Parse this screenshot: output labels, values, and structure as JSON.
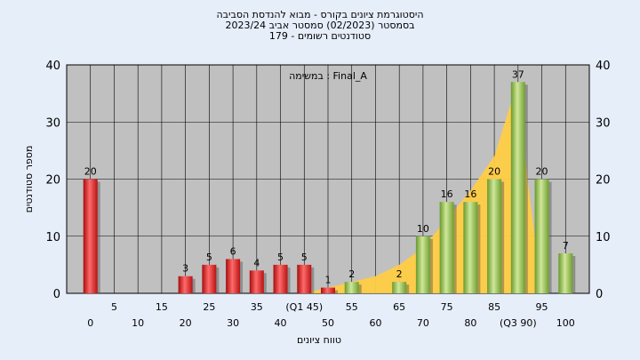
{
  "title_lines": [
    "היסטוגרמת ציונים בקורס - מבוא להנדסת הסביבה",
    "בסמסטר  (02/2023)  סמסטר אביב 2023/24",
    "סטודנטים רשומים - 179"
  ],
  "chart_data": {
    "type": "bar",
    "annotation": "במשימה : Final_A",
    "ylabel": "מספר סטודנטים",
    "xlabel": "טווח ציונים",
    "ylim": [
      0,
      40
    ],
    "yticks": [
      0,
      10,
      20,
      30,
      40
    ],
    "grid": true,
    "x_ticks": [
      {
        "label": "0",
        "row": 2
      },
      {
        "label": "5",
        "row": 1
      },
      {
        "label": "10",
        "row": 2
      },
      {
        "label": "15",
        "row": 1
      },
      {
        "label": "20",
        "row": 2
      },
      {
        "label": "25",
        "row": 1
      },
      {
        "label": "30",
        "row": 2
      },
      {
        "label": "35",
        "row": 1
      },
      {
        "label": "40",
        "row": 2
      },
      {
        "label": "(Q1 45)",
        "row": 1
      },
      {
        "label": "50",
        "row": 2
      },
      {
        "label": "55",
        "row": 1
      },
      {
        "label": "60",
        "row": 2
      },
      {
        "label": "65",
        "row": 1
      },
      {
        "label": "70",
        "row": 2
      },
      {
        "label": "75",
        "row": 1
      },
      {
        "label": "80",
        "row": 2
      },
      {
        "label": "85",
        "row": 1
      },
      {
        "label": "(Q3 90)",
        "row": 2
      },
      {
        "label": "95",
        "row": 1
      },
      {
        "label": "100",
        "row": 2
      }
    ],
    "bars": [
      {
        "x": 0,
        "value": 20,
        "color": "red"
      },
      {
        "x": 20,
        "value": 3,
        "color": "red"
      },
      {
        "x": 25,
        "value": 5,
        "color": "red"
      },
      {
        "x": 30,
        "value": 6,
        "color": "red"
      },
      {
        "x": 35,
        "value": 4,
        "color": "red"
      },
      {
        "x": 40,
        "value": 5,
        "color": "red"
      },
      {
        "x": 45,
        "value": 5,
        "color": "red"
      },
      {
        "x": 50,
        "value": 1,
        "color": "red"
      },
      {
        "x": 55,
        "value": 2,
        "color": "green"
      },
      {
        "x": 65,
        "value": 2,
        "color": "green"
      },
      {
        "x": 70,
        "value": 10,
        "color": "green"
      },
      {
        "x": 75,
        "value": 16,
        "color": "green"
      },
      {
        "x": 80,
        "value": 16,
        "color": "green"
      },
      {
        "x": 85,
        "value": 20,
        "color": "green"
      },
      {
        "x": 90,
        "value": 37,
        "color": "green"
      },
      {
        "x": 95,
        "value": 20,
        "color": "green"
      },
      {
        "x": 100,
        "value": 7,
        "color": "green"
      }
    ],
    "distribution_curve": {
      "color": "#ffcc44",
      "points": [
        [
          45,
          0
        ],
        [
          50,
          1
        ],
        [
          55,
          2
        ],
        [
          60,
          3
        ],
        [
          65,
          5
        ],
        [
          70,
          8
        ],
        [
          75,
          13
        ],
        [
          80,
          18
        ],
        [
          85,
          24
        ],
        [
          88,
          32
        ],
        [
          90,
          37
        ],
        [
          92,
          20
        ],
        [
          95,
          0
        ]
      ]
    },
    "colors": {
      "plot_background": "#c0c0c0",
      "page_background": "#e6eefa",
      "red_bar": "#dd2222",
      "green_bar": "#8fbb44"
    }
  }
}
